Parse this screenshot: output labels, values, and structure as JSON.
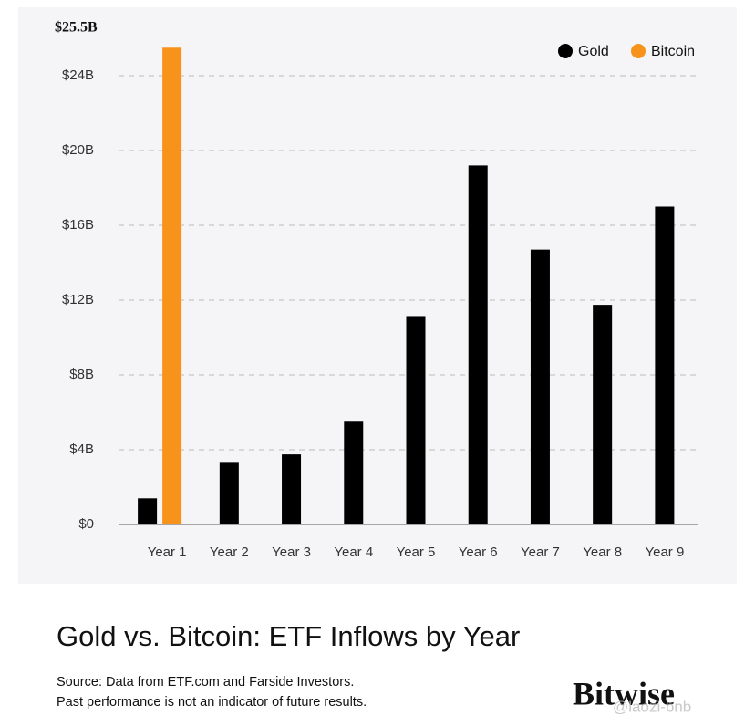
{
  "chart_data": {
    "type": "bar",
    "title": "Gold vs. Bitcoin: ETF Inflows by Year",
    "categories": [
      "Year 1",
      "Year 2",
      "Year 3",
      "Year 4",
      "Year 5",
      "Year 6",
      "Year 7",
      "Year 8",
      "Year 9"
    ],
    "series": [
      {
        "name": "Gold",
        "color": "#000000",
        "values": [
          1.4,
          3.3,
          3.75,
          5.5,
          11.1,
          19.2,
          14.7,
          11.75,
          17.0
        ]
      },
      {
        "name": "Bitcoin",
        "color": "#f7931a",
        "values": [
          25.5,
          null,
          null,
          null,
          null,
          null,
          null,
          null,
          null
        ],
        "value_labels": [
          "$25.5B",
          null,
          null,
          null,
          null,
          null,
          null,
          null,
          null
        ]
      }
    ],
    "ylim": [
      0,
      24
    ],
    "yticks": [
      {
        "value": 0,
        "label": "$0"
      },
      {
        "value": 4,
        "label": "$4B"
      },
      {
        "value": 8,
        "label": "$8B"
      },
      {
        "value": 12,
        "label": "$12B"
      },
      {
        "value": 16,
        "label": "$16B"
      },
      {
        "value": 20,
        "label": "$20B"
      },
      {
        "value": 24,
        "label": "$24B"
      }
    ],
    "grid": true,
    "legend": "top-right"
  },
  "footer": {
    "source": [
      "Source: Data from ETF.com and Farside Investors.",
      "Past performance is not an indicator of future results."
    ],
    "brand": "Bitwise",
    "watermark": "@laozi-bnb"
  }
}
